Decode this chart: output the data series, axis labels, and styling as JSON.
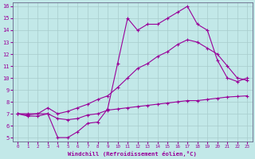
{
  "xlabel": "Windchill (Refroidissement éolien,°C)",
  "background_color": "#c2e8e8",
  "grid_color": "#a8cccc",
  "line_color": "#990099",
  "xlim": [
    -0.5,
    23.5
  ],
  "ylim": [
    4.7,
    16.3
  ],
  "yticks": [
    5,
    6,
    7,
    8,
    9,
    10,
    11,
    12,
    13,
    14,
    15,
    16
  ],
  "xticks": [
    0,
    1,
    2,
    3,
    4,
    5,
    6,
    7,
    8,
    9,
    10,
    11,
    12,
    13,
    14,
    15,
    16,
    17,
    18,
    19,
    20,
    21,
    22,
    23
  ],
  "line1_x": [
    0,
    1,
    2,
    3,
    4,
    5,
    6,
    7,
    8,
    9,
    10,
    11,
    12,
    13,
    14,
    15,
    16,
    17,
    18,
    19,
    20,
    21,
    22,
    23
  ],
  "line1_y": [
    7.0,
    6.9,
    7.0,
    7.0,
    6.6,
    6.5,
    6.6,
    6.9,
    7.0,
    7.3,
    7.4,
    7.5,
    7.6,
    7.7,
    7.8,
    7.9,
    8.0,
    8.1,
    8.1,
    8.2,
    8.3,
    8.4,
    8.45,
    8.5
  ],
  "line2_x": [
    0,
    1,
    2,
    3,
    4,
    5,
    6,
    7,
    8,
    9,
    10,
    11,
    12,
    13,
    14,
    15,
    16,
    17,
    18,
    19,
    20,
    21,
    22,
    23
  ],
  "line2_y": [
    7.0,
    7.0,
    7.0,
    7.5,
    7.0,
    7.2,
    7.5,
    7.8,
    8.2,
    8.5,
    9.2,
    10.0,
    10.8,
    11.2,
    11.8,
    12.2,
    12.8,
    13.2,
    13.0,
    12.5,
    12.0,
    11.0,
    10.0,
    9.8
  ],
  "line3_x": [
    0,
    1,
    2,
    3,
    4,
    5,
    6,
    7,
    8,
    9,
    10,
    11,
    12,
    13,
    14,
    15,
    16,
    17,
    18,
    19,
    20,
    21,
    22,
    23
  ],
  "line3_y": [
    7.0,
    6.8,
    6.8,
    7.0,
    5.0,
    5.0,
    5.5,
    6.2,
    6.3,
    7.4,
    11.2,
    15.0,
    14.0,
    14.5,
    14.5,
    15.0,
    15.5,
    16.0,
    14.5,
    14.0,
    11.5,
    10.0,
    9.7,
    10.0
  ]
}
